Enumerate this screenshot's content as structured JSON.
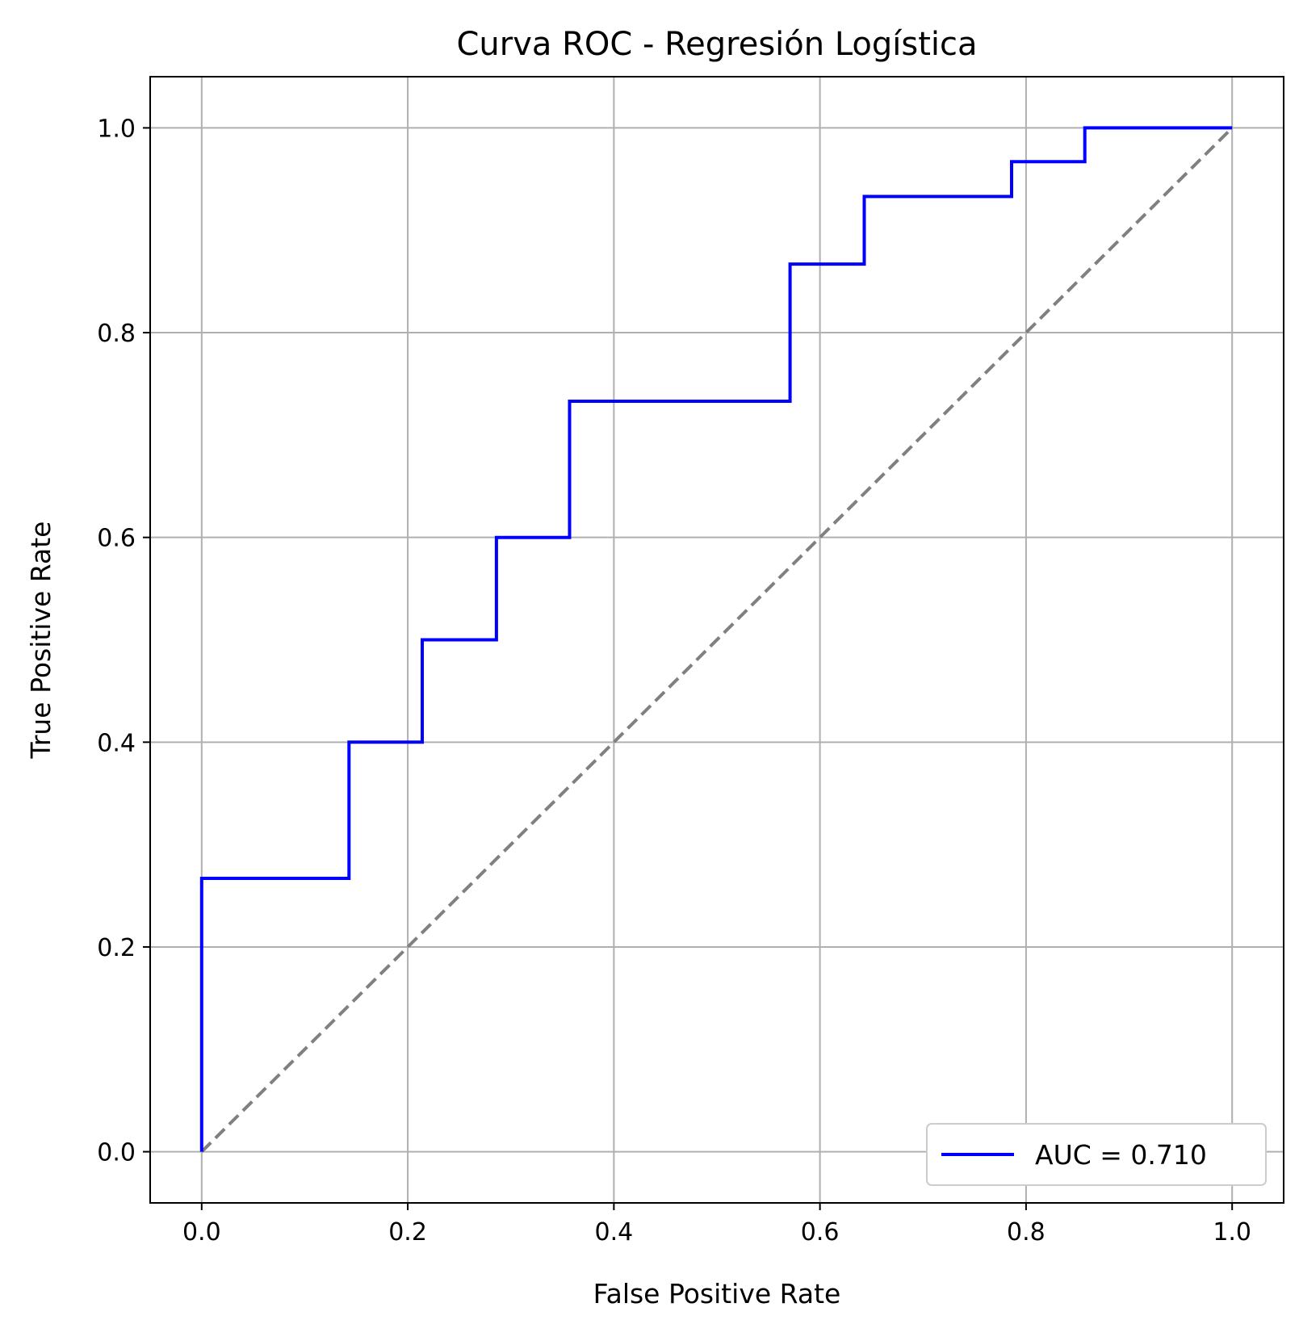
{
  "chart_data": {
    "type": "line",
    "title": "Curva ROC - Regresión Logística",
    "xlabel": "False Positive Rate",
    "ylabel": "True Positive Rate",
    "xlim": [
      -0.05,
      1.05
    ],
    "ylim": [
      -0.05,
      1.05
    ],
    "x_ticks": [
      "0.0",
      "0.2",
      "0.4",
      "0.6",
      "0.8",
      "1.0"
    ],
    "y_ticks": [
      "0.0",
      "0.2",
      "0.4",
      "0.6",
      "0.8",
      "1.0"
    ],
    "grid": true,
    "legend_position": "lower-right",
    "series": [
      {
        "name": "AUC = 0.710",
        "color": "#0000ff",
        "style": "solid",
        "x": [
          0.0,
          0.0,
          0.143,
          0.143,
          0.214,
          0.214,
          0.286,
          0.286,
          0.357,
          0.357,
          0.571,
          0.571,
          0.643,
          0.643,
          0.786,
          0.786,
          0.857,
          0.857,
          1.0
        ],
        "y": [
          0.0,
          0.267,
          0.267,
          0.4,
          0.4,
          0.5,
          0.5,
          0.6,
          0.6,
          0.733,
          0.733,
          0.867,
          0.867,
          0.933,
          0.933,
          0.967,
          0.967,
          1.0,
          1.0
        ]
      },
      {
        "color": "#808080",
        "style": "dashed",
        "x": [
          0.0,
          1.0
        ],
        "y": [
          0.0,
          1.0
        ]
      }
    ]
  }
}
